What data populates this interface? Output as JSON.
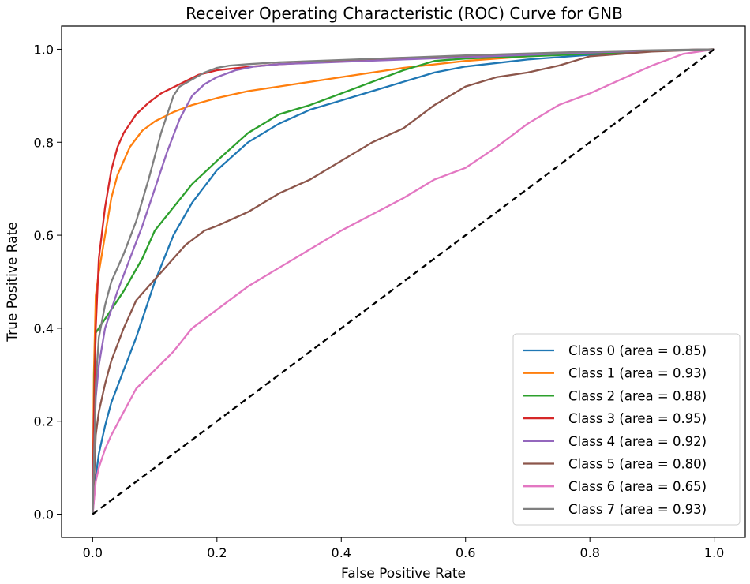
{
  "chart_data": {
    "type": "line",
    "title": "Receiver Operating Characteristic (ROC) Curve for GNB",
    "xlabel": "False Positive Rate",
    "ylabel": "True Positive Rate",
    "xlim": [
      -0.05,
      1.05
    ],
    "ylim": [
      -0.05,
      1.05
    ],
    "xticks": [
      0.0,
      0.2,
      0.4,
      0.6,
      0.8,
      1.0
    ],
    "xtick_labels": [
      "0.0",
      "0.2",
      "0.4",
      "0.6",
      "0.8",
      "1.0"
    ],
    "yticks": [
      0.0,
      0.2,
      0.4,
      0.6,
      0.8,
      1.0
    ],
    "ytick_labels": [
      "0.0",
      "0.2",
      "0.4",
      "0.6",
      "0.8",
      "1.0"
    ],
    "grid": false,
    "legend_position": "lower-right",
    "diagonal": {
      "x": [
        0,
        1
      ],
      "y": [
        0,
        1
      ],
      "color": "#000000",
      "style": "dashed"
    },
    "series": [
      {
        "name": "Class 0",
        "legend": "Class 0 (area = 0.85)",
        "color": "#1f77b4",
        "x": [
          0,
          0.005,
          0.01,
          0.02,
          0.03,
          0.05,
          0.07,
          0.1,
          0.13,
          0.16,
          0.2,
          0.25,
          0.3,
          0.35,
          0.4,
          0.45,
          0.5,
          0.55,
          0.6,
          0.7,
          0.8,
          0.9,
          1.0
        ],
        "y": [
          0,
          0.08,
          0.13,
          0.19,
          0.24,
          0.31,
          0.38,
          0.5,
          0.6,
          0.67,
          0.74,
          0.8,
          0.84,
          0.87,
          0.89,
          0.91,
          0.93,
          0.95,
          0.963,
          0.978,
          0.988,
          0.996,
          1.0
        ]
      },
      {
        "name": "Class 1",
        "legend": "Class 1 (area = 0.93)",
        "color": "#ff7f0e",
        "x": [
          0,
          0.002,
          0.005,
          0.01,
          0.02,
          0.03,
          0.04,
          0.06,
          0.08,
          0.1,
          0.13,
          0.16,
          0.2,
          0.25,
          0.3,
          0.35,
          0.4,
          0.45,
          0.5,
          0.6,
          0.7,
          0.8,
          0.9,
          1.0
        ],
        "y": [
          0,
          0.3,
          0.47,
          0.52,
          0.6,
          0.68,
          0.73,
          0.79,
          0.825,
          0.845,
          0.865,
          0.88,
          0.895,
          0.91,
          0.92,
          0.93,
          0.94,
          0.95,
          0.96,
          0.975,
          0.985,
          0.992,
          0.997,
          1.0
        ]
      },
      {
        "name": "Class 2",
        "legend": "Class 2 (area = 0.88)",
        "color": "#2ca02c",
        "x": [
          0,
          0.003,
          0.005,
          0.01,
          0.02,
          0.03,
          0.05,
          0.08,
          0.1,
          0.13,
          0.16,
          0.2,
          0.25,
          0.3,
          0.35,
          0.4,
          0.45,
          0.5,
          0.55,
          0.6,
          0.7,
          0.8,
          0.9,
          1.0
        ],
        "y": [
          0,
          0.3,
          0.39,
          0.4,
          0.42,
          0.44,
          0.48,
          0.55,
          0.61,
          0.66,
          0.71,
          0.76,
          0.82,
          0.86,
          0.88,
          0.905,
          0.93,
          0.955,
          0.975,
          0.98,
          0.985,
          0.99,
          0.996,
          1.0
        ]
      },
      {
        "name": "Class 3",
        "legend": "Class 3 (area = 0.95)",
        "color": "#d62728",
        "x": [
          0,
          0.002,
          0.005,
          0.01,
          0.02,
          0.03,
          0.04,
          0.05,
          0.07,
          0.09,
          0.11,
          0.14,
          0.17,
          0.2,
          0.25,
          0.3,
          0.4,
          0.5,
          0.6,
          0.7,
          0.8,
          0.9,
          1.0
        ],
        "y": [
          0,
          0.2,
          0.4,
          0.55,
          0.66,
          0.74,
          0.79,
          0.82,
          0.86,
          0.885,
          0.905,
          0.925,
          0.945,
          0.955,
          0.962,
          0.968,
          0.974,
          0.979,
          0.984,
          0.989,
          0.993,
          0.997,
          1.0
        ]
      },
      {
        "name": "Class 4",
        "legend": "Class 4 (area = 0.92)",
        "color": "#9467bd",
        "x": [
          0,
          0.003,
          0.005,
          0.01,
          0.02,
          0.04,
          0.06,
          0.08,
          0.1,
          0.12,
          0.14,
          0.16,
          0.18,
          0.2,
          0.23,
          0.26,
          0.3,
          0.4,
          0.5,
          0.6,
          0.7,
          0.8,
          0.9,
          1.0
        ],
        "y": [
          0,
          0.16,
          0.25,
          0.32,
          0.4,
          0.48,
          0.55,
          0.62,
          0.7,
          0.78,
          0.85,
          0.9,
          0.925,
          0.94,
          0.955,
          0.963,
          0.968,
          0.973,
          0.978,
          0.983,
          0.988,
          0.993,
          0.997,
          1.0
        ]
      },
      {
        "name": "Class 5",
        "legend": "Class 5 (area = 0.80)",
        "color": "#8c564b",
        "x": [
          0,
          0.003,
          0.005,
          0.01,
          0.02,
          0.03,
          0.05,
          0.07,
          0.09,
          0.11,
          0.13,
          0.15,
          0.18,
          0.2,
          0.25,
          0.3,
          0.35,
          0.4,
          0.45,
          0.5,
          0.55,
          0.6,
          0.65,
          0.7,
          0.75,
          0.8,
          0.85,
          0.9,
          1.0
        ],
        "y": [
          0,
          0.1,
          0.17,
          0.22,
          0.28,
          0.33,
          0.4,
          0.46,
          0.49,
          0.52,
          0.55,
          0.58,
          0.61,
          0.62,
          0.65,
          0.69,
          0.72,
          0.76,
          0.8,
          0.83,
          0.88,
          0.92,
          0.94,
          0.95,
          0.965,
          0.985,
          0.99,
          0.995,
          1.0
        ]
      },
      {
        "name": "Class 6",
        "legend": "Class 6 (area = 0.65)",
        "color": "#e377c2",
        "x": [
          0,
          0.005,
          0.01,
          0.02,
          0.03,
          0.05,
          0.07,
          0.1,
          0.13,
          0.16,
          0.2,
          0.25,
          0.3,
          0.35,
          0.4,
          0.45,
          0.5,
          0.55,
          0.6,
          0.65,
          0.7,
          0.75,
          0.8,
          0.85,
          0.9,
          0.95,
          1.0
        ],
        "y": [
          0,
          0.07,
          0.1,
          0.14,
          0.17,
          0.22,
          0.27,
          0.31,
          0.35,
          0.4,
          0.44,
          0.49,
          0.53,
          0.57,
          0.61,
          0.645,
          0.68,
          0.72,
          0.745,
          0.79,
          0.84,
          0.88,
          0.905,
          0.935,
          0.965,
          0.99,
          1.0
        ]
      },
      {
        "name": "Class 7",
        "legend": "Class 7 (area = 0.93)",
        "color": "#7f7f7f",
        "x": [
          0,
          0.003,
          0.005,
          0.01,
          0.02,
          0.03,
          0.05,
          0.07,
          0.09,
          0.11,
          0.13,
          0.14,
          0.16,
          0.18,
          0.2,
          0.22,
          0.25,
          0.3,
          0.4,
          0.5,
          0.6,
          0.7,
          0.8,
          0.9,
          1.0
        ],
        "y": [
          0,
          0.15,
          0.28,
          0.38,
          0.45,
          0.5,
          0.56,
          0.63,
          0.72,
          0.82,
          0.9,
          0.92,
          0.935,
          0.95,
          0.96,
          0.965,
          0.968,
          0.972,
          0.977,
          0.982,
          0.987,
          0.991,
          0.995,
          0.998,
          1.0
        ]
      }
    ]
  }
}
